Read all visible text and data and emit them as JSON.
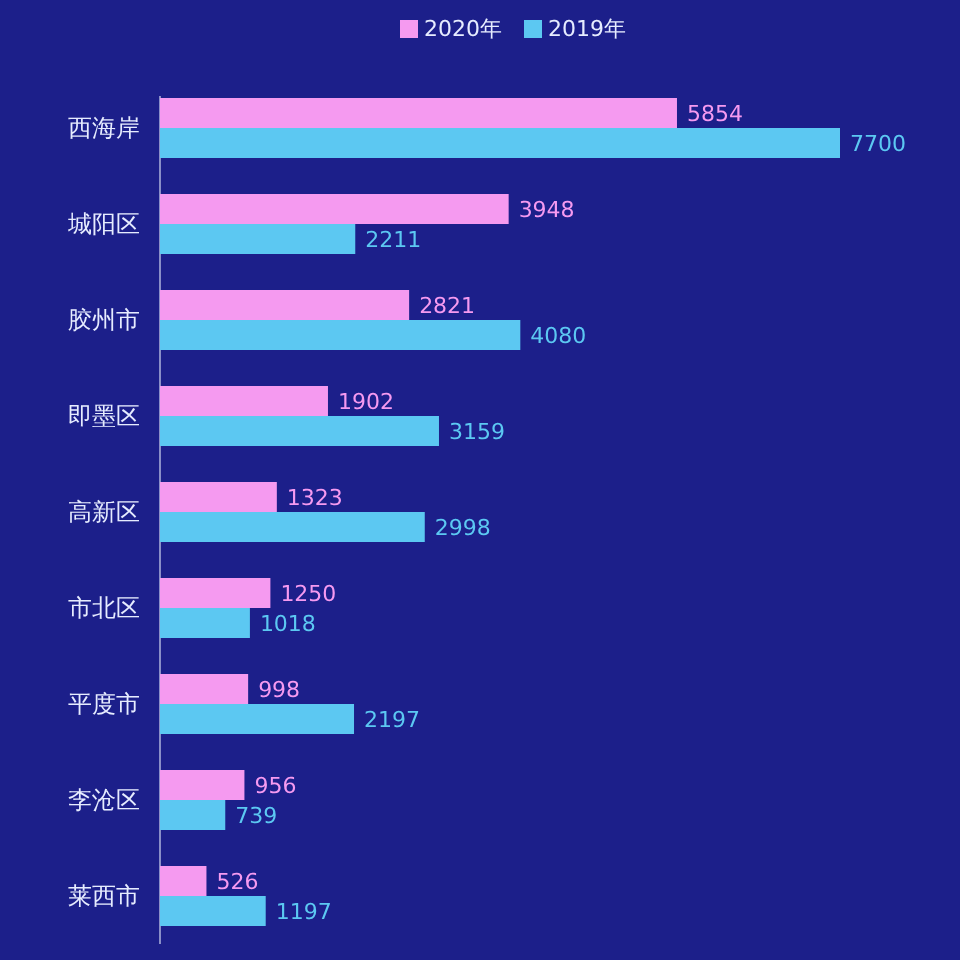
{
  "chart_data": {
    "type": "bar",
    "orientation": "horizontal",
    "categories": [
      "西海岸",
      "城阳区",
      "胶州市",
      "即墨区",
      "高新区",
      "市北区",
      "平度市",
      "李沧区",
      "莱西市"
    ],
    "series": [
      {
        "name": "2020年",
        "color": "#f59af0",
        "values": [
          5854,
          3948,
          2821,
          1902,
          1323,
          1250,
          998,
          956,
          526
        ]
      },
      {
        "name": "2019年",
        "color": "#5cc8f2",
        "values": [
          7700,
          2211,
          4080,
          3159,
          2998,
          1018,
          2197,
          739,
          1197
        ]
      }
    ],
    "data_labels": true,
    "legend": "top",
    "grid": false
  }
}
